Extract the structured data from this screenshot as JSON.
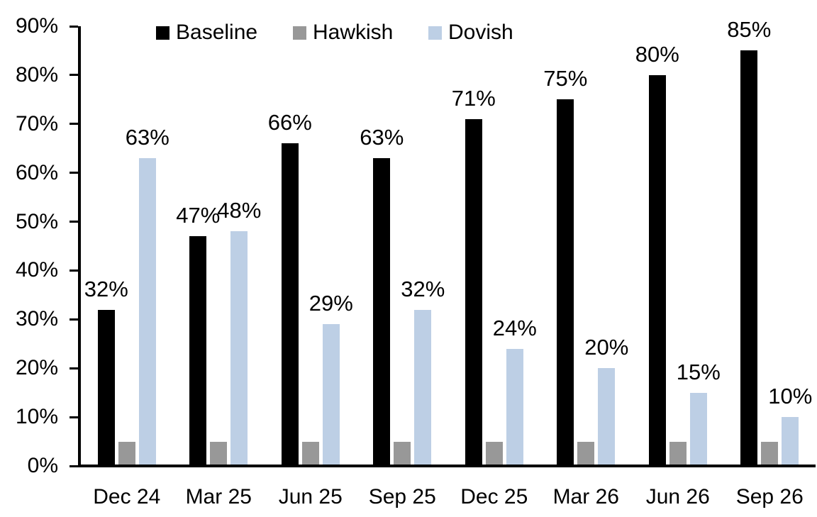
{
  "chart_data": {
    "type": "bar",
    "categories": [
      "Dec 24",
      "Mar 25",
      "Jun 25",
      "Sep 25",
      "Dec 25",
      "Mar 26",
      "Jun 26",
      "Sep 26"
    ],
    "series": [
      {
        "name": "Baseline",
        "color": "#000000",
        "values": [
          32,
          47,
          66,
          63,
          71,
          75,
          80,
          85
        ],
        "data_labels": true
      },
      {
        "name": "Hawkish",
        "color": "#989898",
        "values": [
          5,
          5,
          5,
          5,
          5,
          5,
          5,
          5
        ],
        "data_labels": false
      },
      {
        "name": "Dovish",
        "color": "#BDCFE5",
        "values": [
          63,
          48,
          29,
          32,
          24,
          20,
          15,
          10
        ],
        "data_labels": true
      }
    ],
    "ylim": [
      0,
      90
    ],
    "ytick_step": 10,
    "ytick_labels": [
      "0%",
      "10%",
      "20%",
      "30%",
      "40%",
      "50%",
      "60%",
      "70%",
      "80%",
      "90%"
    ],
    "value_suffix": "%",
    "legend_position": "top",
    "grid": false,
    "axis_color": "#000000",
    "background": "#FFFFFF"
  }
}
